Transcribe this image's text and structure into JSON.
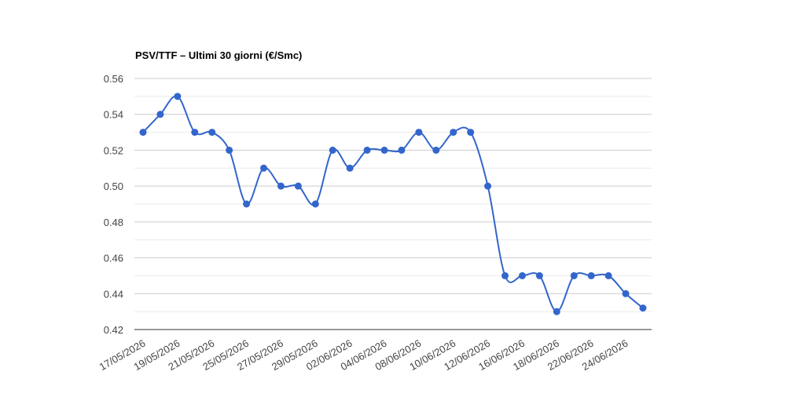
{
  "chart_data": {
    "type": "line",
    "title": "PSV/TTF – Ultimi 30 giorni (€/Smc)",
    "categories": [
      "17/05/2026",
      null,
      "19/05/2026",
      null,
      "21/05/2026",
      null,
      "25/05/2026",
      null,
      "27/05/2026",
      null,
      "29/05/2026",
      null,
      "02/06/2026",
      null,
      "04/06/2026",
      null,
      "08/06/2026",
      null,
      "10/06/2026",
      null,
      "12/06/2026",
      null,
      "16/06/2026",
      null,
      "18/06/2026",
      null,
      "22/06/2026",
      null,
      "24/06/2026",
      null
    ],
    "series": [
      {
        "color": "#3366cc",
        "values": [
          0.53,
          0.54,
          0.55,
          0.53,
          0.53,
          0.52,
          0.49,
          0.51,
          0.5,
          0.5,
          0.49,
          0.52,
          0.51,
          0.52,
          0.52,
          0.52,
          0.53,
          0.52,
          0.53,
          0.53,
          0.5,
          0.45,
          0.45,
          0.45,
          0.43,
          0.45,
          0.45,
          0.45,
          0.44,
          0.432
        ]
      }
    ],
    "ylim": [
      0.42,
      0.56
    ],
    "yticks": [
      0.42,
      0.44,
      0.46,
      0.48,
      {
        "value": 0.5,
        "label": "0.50"
      },
      0.52,
      0.54,
      0.56
    ],
    "grid": true,
    "minor_grid": true,
    "smooth": true
  }
}
